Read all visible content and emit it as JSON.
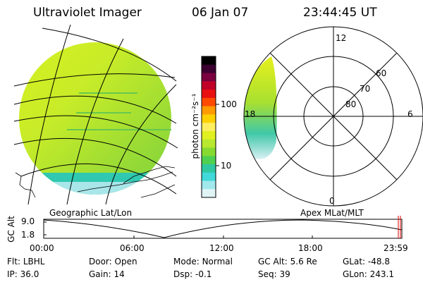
{
  "header": {
    "instrument": "Ultraviolet Imager",
    "date": "06 Jan 07",
    "time": "23:44:45 UT"
  },
  "colorbar": {
    "unit_label": "photon cm⁻²s⁻¹",
    "ticks": [
      "100",
      "10"
    ],
    "colors": [
      "#000000",
      "#3b0030",
      "#7a0040",
      "#c00028",
      "#e81010",
      "#ff4a00",
      "#ff9a00",
      "#ffd000",
      "#ffee60",
      "#e0f020",
      "#b8e830",
      "#86da30",
      "#50d050",
      "#30c8a0",
      "#40d8d8",
      "#a0e8ec",
      "#e0f4f6"
    ]
  },
  "panels": {
    "left_caption": "Geographic Lat/Lon",
    "right_caption": "Apex MLat/MLT"
  },
  "polar_plot": {
    "mlt_labels": {
      "top": "12",
      "left": "18",
      "right": "6",
      "bottom": "0"
    },
    "mlat_labels": [
      "60",
      "70",
      "80"
    ]
  },
  "altitude_plot": {
    "ylabel": "GC Alt",
    "yticks": [
      "9.0",
      "1.8"
    ],
    "xticks": [
      "00:00",
      "06:00",
      "12:00",
      "18:00",
      "23:59"
    ]
  },
  "info": {
    "row1": [
      {
        "label": "Flt:",
        "value": "LBHL"
      },
      {
        "label": "Door:",
        "value": "Open"
      },
      {
        "label": "Mode:",
        "value": "Normal"
      },
      {
        "label": "GC Alt:",
        "value": "5.6 Re"
      },
      {
        "label": "GLat:",
        "value": "-48.8"
      }
    ],
    "row2": [
      {
        "label": "IP:",
        "value": "36.0"
      },
      {
        "label": "Gain:",
        "value": "14"
      },
      {
        "label": "Dsp:",
        "value": "-0.1"
      },
      {
        "label": "Seq:",
        "value": "39"
      },
      {
        "label": "GLon:",
        "value": "243.1"
      }
    ]
  }
}
